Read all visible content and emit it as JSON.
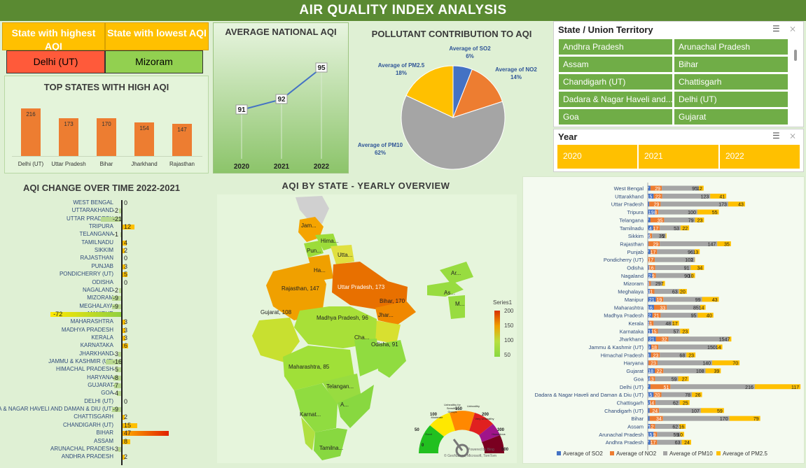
{
  "title": "AIR QUALITY INDEX ANALYSIS",
  "highest": {
    "label": "State with highest AQI",
    "value": "Delhi (UT)"
  },
  "lowest": {
    "label": "State with lowest AQI",
    "value": "Mizoram"
  },
  "top_states": {
    "title": "TOP STATES WITH HIGH AQI",
    "categories": [
      "Delhi (UT)",
      "Uttar Pradesh",
      "Bihar",
      "Jharkhand",
      "Rajasthan"
    ],
    "values": [
      216,
      173,
      170,
      154,
      147
    ]
  },
  "national": {
    "title": "AVERAGE NATIONAL AQI",
    "years": [
      "2020",
      "2021",
      "2022"
    ],
    "values": [
      91,
      92,
      95
    ]
  },
  "pollutant": {
    "title": "POLLUTANT CONTRIBUTION TO AQI",
    "slices": [
      {
        "name": "Average of SO2",
        "pct": "6%",
        "value": 6,
        "color": "#4472c4"
      },
      {
        "name": "Average of NO2",
        "pct": "14%",
        "value": 14,
        "color": "#ed7d31"
      },
      {
        "name": "Average of PM10",
        "pct": "62%",
        "value": 62,
        "color": "#a5a5a5"
      },
      {
        "name": "Average of PM2.5",
        "pct": "18%",
        "value": 18,
        "color": "#ffc000"
      }
    ]
  },
  "state_slicer": {
    "title": "State / Union Territory",
    "items": [
      "Andhra Pradesh",
      "Arunachal Pradesh",
      "Assam",
      "Bihar",
      "Chandigarh (UT)",
      "Chattisgarh",
      "Dadara & Nagar Haveli and...",
      "Delhi (UT)",
      "Goa",
      "Gujarat"
    ]
  },
  "year_slicer": {
    "title": "Year",
    "items": [
      "2020",
      "2021",
      "2022"
    ]
  },
  "change": {
    "title": "AQI CHANGE OVER TIME 2022-2021",
    "rows": [
      {
        "state": "WEST BENGAL",
        "value": 0
      },
      {
        "state": "UTTARAKHAND",
        "value": -2
      },
      {
        "state": "UTTAR PRADESH",
        "value": -21
      },
      {
        "state": "TRIPURA",
        "value": 12
      },
      {
        "state": "TELANGANA",
        "value": -1
      },
      {
        "state": "TAMILNADU",
        "value": 4
      },
      {
        "state": "SIKKIM",
        "value": 2
      },
      {
        "state": "RAJASTHAN",
        "value": 0
      },
      {
        "state": "PUNJAB",
        "value": 3
      },
      {
        "state": "PONDICHERRY (UT)",
        "value": 5
      },
      {
        "state": "ODISHA",
        "value": 0
      },
      {
        "state": "NAGALAND",
        "value": -2
      },
      {
        "state": "MIZORAM",
        "value": -9
      },
      {
        "state": "MEGHALAYA",
        "value": -9
      },
      {
        "state": "MANIPUR",
        "value": -72
      },
      {
        "state": "MAHARASHTRA",
        "value": 3
      },
      {
        "state": "MADHYA PRADESH",
        "value": 3
      },
      {
        "state": "KERALA",
        "value": 3
      },
      {
        "state": "KARNATAKA",
        "value": 6
      },
      {
        "state": "JHARKHAND",
        "value": -3
      },
      {
        "state": "JAMMU & KASHMIR (UT)",
        "value": -16
      },
      {
        "state": "HIMACHAL PRADESH",
        "value": -5
      },
      {
        "state": "HARYANA",
        "value": -8
      },
      {
        "state": "GUJARAT",
        "value": -7
      },
      {
        "state": "GOA",
        "value": -4
      },
      {
        "state": "DELHI (UT)",
        "value": 0
      },
      {
        "state": "DADARA & NAGAR HAVELI AND DAMAN & DIU (UT)",
        "value": -9
      },
      {
        "state": "CHATTISGARH",
        "value": 2
      },
      {
        "state": "CHANDIGARH (UT)",
        "value": 15
      },
      {
        "state": "BIHAR",
        "value": 47
      },
      {
        "state": "ASSAM",
        "value": 8
      },
      {
        "state": "ARUNACHAL PRADESH",
        "value": -3
      },
      {
        "state": "ANDHRA PRADESH",
        "value": 2
      }
    ]
  },
  "map": {
    "title": "AQI BY STATE - YEARLY OVERVIEW",
    "legend_title": "Series1",
    "legend_ticks": [
      "200",
      "150",
      "100",
      "50"
    ],
    "labels": [
      "Jam...",
      "Hima...",
      "Pun...",
      "Utta...",
      "Ha...",
      "Rajasthan, 147",
      "Uttar Pradesh, 173",
      "Bihar, 170",
      "Jhar...",
      "Gujarat, 108",
      "Madhya Pradesh, 96",
      "Cha...",
      "Odisha, 91",
      "Maharashtra, 85",
      "Telangan...",
      "A...",
      "Karnat...",
      "Tamilna...",
      "Ar...",
      "As...",
      "M..."
    ]
  },
  "gauge": {
    "ticks": [
      "0",
      "50",
      "100",
      "150",
      "200",
      "300",
      "500"
    ],
    "zones": [
      "Good",
      "Moderate",
      "Unhealthy for Sensitive Groups",
      "Unhealthy",
      "Very Unhealthy",
      "Hazardous"
    ],
    "credit": "Powered by Bing",
    "copyright": "© GeoNames, Microsoft, TomTom"
  },
  "chart_data": {
    "type": "bar",
    "stacked": true,
    "legend": "bottom",
    "categories": [
      "West Bengal",
      "Uttarakhand",
      "Uttar Pradesh",
      "Tripura",
      "Telangana",
      "Tamilnadu",
      "Sikkim",
      "Rajasthan",
      "Punjab",
      "Pondicherry (UT)",
      "Odisha",
      "Nagaland",
      "Mizoram",
      "Meghalaya",
      "Manipur",
      "Maharashtra",
      "Madhya Pradesh",
      "Kerala",
      "Karnataka",
      "Jharkhand",
      "Jammu & Kashmir (UT)",
      "Himachal Pradesh",
      "Haryana",
      "Gujarat",
      "Goa",
      "Delhi (UT)",
      "Dadara & Nagar Haveli and Daman & Diu (UT)",
      "Chattisgarh",
      "Chandigarh (UT)",
      "Bihar",
      "Assam",
      "Arunachal Pradesh",
      "Andhra Pradesh"
    ],
    "series": [
      {
        "name": "Average of SO2",
        "color": "#4472c4",
        "values": [
          7,
          15,
          4,
          19,
          7,
          14,
          5,
          2,
          7,
          1,
          3,
          12,
          3,
          6,
          21,
          16,
          12,
          4,
          11,
          21,
          9,
          8,
          2,
          18,
          6,
          7,
          15,
          6,
          5,
          5,
          7,
          15,
          7
        ]
      },
      {
        "name": "Average of NO2",
        "color": "#ed7d31",
        "values": [
          29,
          22,
          29,
          8,
          35,
          17,
          6,
          29,
          17,
          17,
          16,
          9,
          5,
          11,
          19,
          33,
          21,
          11,
          15,
          32,
          18,
          23,
          23,
          22,
          13,
          51,
          20,
          14,
          24,
          34,
          12,
          9,
          17
        ]
      },
      {
        "name": "Average of PM10",
        "color": "#a5a5a5",
        "values": [
          95,
          123,
          173,
          100,
          79,
          53,
          35,
          147,
          96,
          102,
          91,
          90,
          29,
          63,
          99,
          85,
          95,
          48,
          57,
          154,
          150,
          68,
          140,
          108,
          59,
          216,
          78,
          62,
          107,
          170,
          62,
          59,
          63
        ]
      },
      {
        "name": "Average of PM2.5",
        "color": "#ffc000",
        "values": [
          12,
          41,
          43,
          55,
          23,
          22,
          2,
          35,
          13,
          1,
          34,
          10,
          7,
          20,
          43,
          14,
          40,
          17,
          23,
          7,
          14,
          23,
          70,
          39,
          27,
          117,
          26,
          25,
          59,
          79,
          16,
          10,
          24
        ]
      }
    ]
  }
}
